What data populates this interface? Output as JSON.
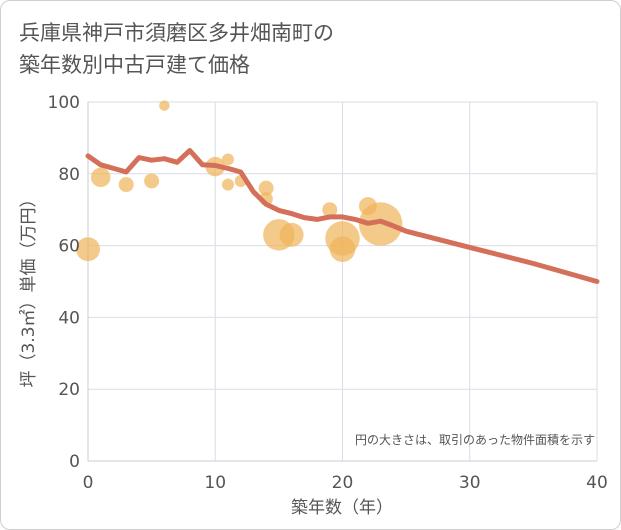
{
  "chart_data": {
    "type": "scatter",
    "title": [
      "兵庫県神戸市須磨区多井畑南町の",
      "築年数別中古戸建て価格"
    ],
    "xlabel": "築年数（年）",
    "ylabel": "坪（3.3㎡）単価（万円）",
    "xlim": [
      0,
      40
    ],
    "ylim": [
      0,
      100
    ],
    "x_ticks": [
      0,
      10,
      20,
      30,
      40
    ],
    "y_ticks": [
      0,
      20,
      40,
      60,
      80,
      100
    ],
    "grid": true,
    "note": "円の大きさは、取引のあった物件面積を示す",
    "colors": {
      "points": "#f0b458",
      "trend": "#d4705a"
    },
    "points": [
      {
        "x": 0,
        "y": 59,
        "size": 1.6
      },
      {
        "x": 1,
        "y": 79,
        "size": 1.3
      },
      {
        "x": 3,
        "y": 77,
        "size": 1.0
      },
      {
        "x": 5,
        "y": 78,
        "size": 1.0
      },
      {
        "x": 6,
        "y": 99,
        "size": 0.7
      },
      {
        "x": 10,
        "y": 82,
        "size": 1.3
      },
      {
        "x": 11,
        "y": 84,
        "size": 0.8
      },
      {
        "x": 11,
        "y": 77,
        "size": 0.8
      },
      {
        "x": 12,
        "y": 78,
        "size": 0.8
      },
      {
        "x": 14,
        "y": 76,
        "size": 1.0
      },
      {
        "x": 14,
        "y": 73,
        "size": 0.9
      },
      {
        "x": 15,
        "y": 63,
        "size": 2.1
      },
      {
        "x": 16,
        "y": 63,
        "size": 1.6
      },
      {
        "x": 19,
        "y": 70,
        "size": 1.0
      },
      {
        "x": 20,
        "y": 62,
        "size": 2.3
      },
      {
        "x": 20,
        "y": 59,
        "size": 1.7
      },
      {
        "x": 22,
        "y": 71,
        "size": 1.2
      },
      {
        "x": 23,
        "y": 66,
        "size": 2.9
      }
    ],
    "trend": {
      "x": [
        0,
        1,
        2,
        3,
        4,
        5,
        6,
        7,
        8,
        9,
        10,
        11,
        12,
        13,
        14,
        15,
        16,
        17,
        18,
        19,
        20,
        21,
        22,
        23,
        24,
        25,
        30,
        35,
        40
      ],
      "y": [
        85,
        82.5,
        81.5,
        80.5,
        84.5,
        83.8,
        84.2,
        83.2,
        86.5,
        82.5,
        82.3,
        81.5,
        80.5,
        75,
        71.5,
        69.8,
        68.9,
        67.8,
        67.3,
        68,
        68,
        67.3,
        66.2,
        66.8,
        65.5,
        64,
        59.5,
        55,
        50
      ]
    }
  }
}
